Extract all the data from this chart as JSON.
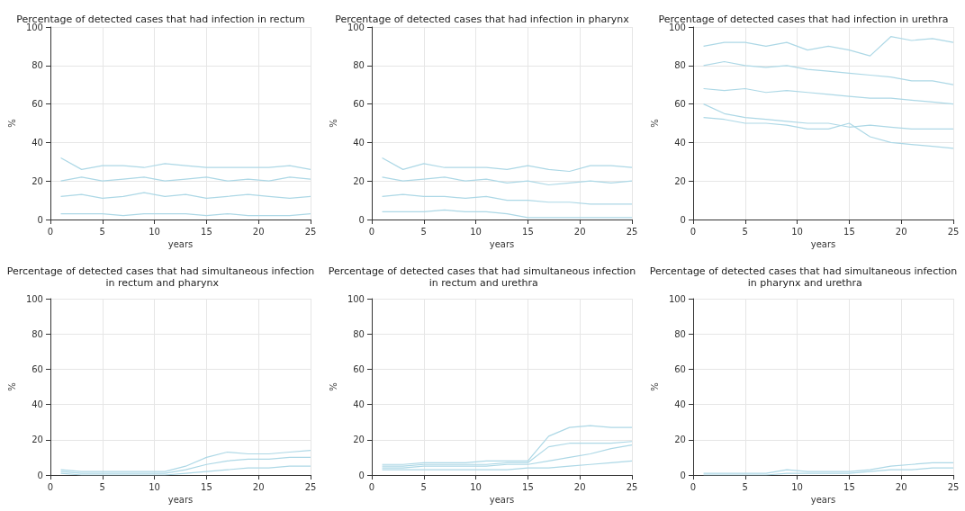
{
  "chart_data": [
    {
      "type": "line",
      "title": "Percentage of detected cases that had infection in rectum",
      "xlabel": "years",
      "ylabel": "%",
      "x": [
        1,
        3,
        5,
        7,
        9,
        11,
        13,
        15,
        17,
        19,
        21,
        23,
        25
      ],
      "xlim": [
        0,
        25
      ],
      "xticks": [
        0,
        5,
        10,
        15,
        20,
        25
      ],
      "ylim": [
        0,
        100
      ],
      "yticks": [
        0,
        20,
        40,
        60,
        80,
        100
      ],
      "grid": true,
      "marker": "none",
      "series": [
        {
          "color": "#add8e6",
          "values": [
            32,
            26,
            28,
            28,
            27,
            29,
            28,
            27,
            27,
            27,
            27,
            28,
            26
          ]
        },
        {
          "color": "#add8e6",
          "values": [
            20,
            22,
            20,
            21,
            22,
            20,
            21,
            22,
            20,
            21,
            20,
            22,
            21
          ]
        },
        {
          "color": "#add8e6",
          "values": [
            12,
            13,
            11,
            12,
            14,
            12,
            13,
            11,
            12,
            13,
            12,
            11,
            12
          ]
        },
        {
          "color": "#add8e6",
          "values": [
            3,
            3,
            3,
            2,
            3,
            3,
            3,
            2,
            3,
            2,
            2,
            2,
            3
          ]
        }
      ]
    },
    {
      "type": "line",
      "title": "Percentage of detected cases that had infection in pharynx",
      "xlabel": "years",
      "ylabel": "%",
      "x": [
        1,
        3,
        5,
        7,
        9,
        11,
        13,
        15,
        17,
        19,
        21,
        23,
        25
      ],
      "xlim": [
        0,
        25
      ],
      "xticks": [
        0,
        5,
        10,
        15,
        20,
        25
      ],
      "ylim": [
        0,
        100
      ],
      "yticks": [
        0,
        20,
        40,
        60,
        80,
        100
      ],
      "grid": true,
      "marker": "none",
      "series": [
        {
          "color": "#add8e6",
          "values": [
            32,
            26,
            29,
            27,
            27,
            27,
            26,
            28,
            26,
            25,
            28,
            28,
            27
          ]
        },
        {
          "color": "#add8e6",
          "values": [
            22,
            20,
            21,
            22,
            20,
            21,
            19,
            20,
            18,
            19,
            20,
            19,
            20
          ]
        },
        {
          "color": "#add8e6",
          "values": [
            12,
            13,
            12,
            12,
            11,
            12,
            10,
            10,
            9,
            9,
            8,
            8,
            8
          ]
        },
        {
          "color": "#add8e6",
          "values": [
            4,
            4,
            4,
            5,
            4,
            4,
            3,
            1,
            1,
            1,
            1,
            1,
            1
          ]
        }
      ]
    },
    {
      "type": "line",
      "title": "Percentage of detected cases that had infection in urethra",
      "xlabel": "years",
      "ylabel": "%",
      "x": [
        1,
        3,
        5,
        7,
        9,
        11,
        13,
        15,
        17,
        19,
        21,
        23,
        25
      ],
      "xlim": [
        0,
        25
      ],
      "xticks": [
        0,
        5,
        10,
        15,
        20,
        25
      ],
      "ylim": [
        0,
        100
      ],
      "yticks": [
        0,
        20,
        40,
        60,
        80,
        100
      ],
      "grid": true,
      "marker": "none",
      "series": [
        {
          "color": "#add8e6",
          "values": [
            90,
            92,
            92,
            90,
            92,
            88,
            90,
            88,
            85,
            95,
            93,
            94,
            92
          ]
        },
        {
          "color": "#add8e6",
          "values": [
            80,
            82,
            80,
            79,
            80,
            78,
            77,
            76,
            75,
            74,
            72,
            72,
            70
          ]
        },
        {
          "color": "#add8e6",
          "values": [
            68,
            67,
            68,
            66,
            67,
            66,
            65,
            64,
            63,
            63,
            62,
            61,
            60
          ]
        },
        {
          "color": "#add8e6",
          "values": [
            60,
            55,
            53,
            52,
            51,
            50,
            50,
            48,
            49,
            48,
            47,
            47,
            47
          ]
        },
        {
          "color": "#add8e6",
          "values": [
            53,
            52,
            50,
            50,
            49,
            47,
            47,
            50,
            43,
            40,
            39,
            38,
            37
          ]
        }
      ]
    },
    {
      "type": "line",
      "title": "Percentage of detected cases that had simultaneous infection in rectum and pharynx",
      "xlabel": "years",
      "ylabel": "%",
      "x": [
        1,
        3,
        5,
        7,
        9,
        11,
        13,
        15,
        17,
        19,
        21,
        23,
        25
      ],
      "xlim": [
        0,
        25
      ],
      "xticks": [
        0,
        5,
        10,
        15,
        20,
        25
      ],
      "ylim": [
        0,
        100
      ],
      "yticks": [
        0,
        20,
        40,
        60,
        80,
        100
      ],
      "grid": true,
      "marker": "none",
      "series": [
        {
          "color": "#add8e6",
          "values": [
            3,
            2,
            2,
            2,
            2,
            2,
            5,
            10,
            13,
            12,
            12,
            13,
            14
          ]
        },
        {
          "color": "#add8e6",
          "values": [
            2,
            1,
            1,
            1,
            1,
            1,
            3,
            6,
            8,
            9,
            9,
            10,
            10
          ]
        },
        {
          "color": "#add8e6",
          "values": [
            1,
            0,
            0,
            0,
            0,
            0,
            1,
            2,
            3,
            4,
            4,
            5,
            5
          ]
        }
      ]
    },
    {
      "type": "line",
      "title": "Percentage of detected cases that had simultaneous infection in rectum and urethra",
      "xlabel": "years",
      "ylabel": "%",
      "x": [
        1,
        3,
        5,
        7,
        9,
        11,
        13,
        15,
        17,
        19,
        21,
        23,
        25
      ],
      "xlim": [
        0,
        25
      ],
      "xticks": [
        0,
        5,
        10,
        15,
        20,
        25
      ],
      "ylim": [
        0,
        100
      ],
      "yticks": [
        0,
        20,
        40,
        60,
        80,
        100
      ],
      "grid": true,
      "marker": "none",
      "series": [
        {
          "color": "#add8e6",
          "values": [
            6,
            6,
            7,
            7,
            7,
            8,
            8,
            8,
            22,
            27,
            28,
            27,
            27
          ]
        },
        {
          "color": "#add8e6",
          "values": [
            5,
            5,
            6,
            6,
            6,
            6,
            7,
            7,
            16,
            18,
            18,
            18,
            19
          ]
        },
        {
          "color": "#add8e6",
          "values": [
            4,
            4,
            5,
            5,
            5,
            5,
            6,
            6,
            8,
            10,
            12,
            15,
            17
          ]
        },
        {
          "color": "#add8e6",
          "values": [
            3,
            3,
            3,
            3,
            3,
            3,
            3,
            4,
            4,
            5,
            6,
            7,
            8
          ]
        }
      ]
    },
    {
      "type": "line",
      "title": "Percentage of detected cases that had simultaneous infection in pharynx and urethra",
      "xlabel": "years",
      "ylabel": "%",
      "x": [
        1,
        3,
        5,
        7,
        9,
        11,
        13,
        15,
        17,
        19,
        21,
        23,
        25
      ],
      "xlim": [
        0,
        25
      ],
      "xticks": [
        0,
        5,
        10,
        15,
        20,
        25
      ],
      "ylim": [
        0,
        100
      ],
      "yticks": [
        0,
        20,
        40,
        60,
        80,
        100
      ],
      "grid": true,
      "marker": "none",
      "series": [
        {
          "color": "#add8e6",
          "values": [
            1,
            1,
            1,
            1,
            3,
            2,
            2,
            2,
            3,
            5,
            6,
            7,
            7
          ]
        },
        {
          "color": "#add8e6",
          "values": [
            0,
            0,
            0,
            0,
            1,
            1,
            1,
            1,
            2,
            3,
            3,
            4,
            4
          ]
        }
      ]
    }
  ]
}
